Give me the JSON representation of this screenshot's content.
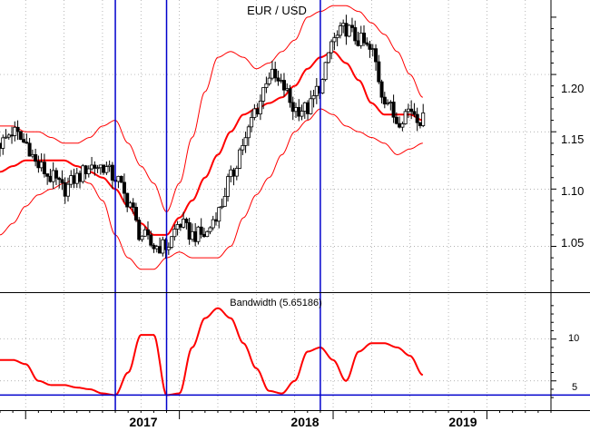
{
  "chart_data": [
    {
      "type": "candlestick",
      "title": "EUR / USD",
      "y_ticks": [
        "1.20",
        "1.15",
        "1.10",
        "1.05"
      ],
      "y_tick_values": [
        1.2,
        1.15,
        1.1,
        1.05
      ],
      "ylim": [
        1.01,
        1.265
      ],
      "x_labels": [
        "2017",
        "2018",
        "2019"
      ],
      "x_label_positions": [
        "2017-01",
        "2018-01",
        "2019-01"
      ],
      "xlim": [
        "2015-11",
        "2019-06"
      ],
      "vertical_markers": [
        "2016-08",
        "2016-12",
        "2017-12"
      ],
      "series": [
        {
          "name": "price_close",
          "color": "#000000",
          "x": [
            "2015-11",
            "2015-12",
            "2016-01",
            "2016-02",
            "2016-03",
            "2016-04",
            "2016-05",
            "2016-06",
            "2016-07",
            "2016-08",
            "2016-09",
            "2016-10",
            "2016-11",
            "2016-12",
            "2017-01",
            "2017-02",
            "2017-03",
            "2017-04",
            "2017-05",
            "2017-06",
            "2017-07",
            "2017-08",
            "2017-09",
            "2017-10",
            "2017-11",
            "2017-12",
            "2018-01",
            "2018-02",
            "2018-03",
            "2018-04",
            "2018-05",
            "2018-06",
            "2018-07",
            "2018-08"
          ],
          "values": [
            1.14,
            1.15,
            1.14,
            1.12,
            1.11,
            1.1,
            1.11,
            1.12,
            1.12,
            1.11,
            1.09,
            1.06,
            1.05,
            1.05,
            1.07,
            1.06,
            1.06,
            1.08,
            1.11,
            1.14,
            1.17,
            1.2,
            1.19,
            1.17,
            1.17,
            1.19,
            1.23,
            1.24,
            1.23,
            1.22,
            1.18,
            1.16,
            1.17,
            1.16
          ]
        },
        {
          "name": "moving_average",
          "color": "#ff0000",
          "x": [
            "2015-11",
            "2015-12",
            "2016-01",
            "2016-02",
            "2016-03",
            "2016-04",
            "2016-05",
            "2016-06",
            "2016-07",
            "2016-08",
            "2016-09",
            "2016-10",
            "2016-11",
            "2016-12",
            "2017-01",
            "2017-02",
            "2017-03",
            "2017-04",
            "2017-05",
            "2017-06",
            "2017-07",
            "2017-08",
            "2017-09",
            "2017-10",
            "2017-11",
            "2017-12",
            "2018-01",
            "2018-02",
            "2018-03",
            "2018-04",
            "2018-05",
            "2018-06",
            "2018-07",
            "2018-08"
          ],
          "values": [
            1.115,
            1.12,
            1.125,
            1.125,
            1.125,
            1.125,
            1.12,
            1.115,
            1.11,
            1.1,
            1.085,
            1.07,
            1.06,
            1.06,
            1.075,
            1.09,
            1.11,
            1.13,
            1.15,
            1.165,
            1.17,
            1.175,
            1.18,
            1.19,
            1.205,
            1.215,
            1.22,
            1.21,
            1.195,
            1.175,
            1.165,
            1.165,
            1.165,
            1.16
          ]
        },
        {
          "name": "upper_band",
          "color": "#ff0000",
          "x": [
            "2015-11",
            "2015-12",
            "2016-01",
            "2016-02",
            "2016-03",
            "2016-04",
            "2016-05",
            "2016-06",
            "2016-07",
            "2016-08",
            "2016-09",
            "2016-10",
            "2016-11",
            "2016-12",
            "2017-01",
            "2017-02",
            "2017-03",
            "2017-04",
            "2017-05",
            "2017-06",
            "2017-07",
            "2017-08",
            "2017-09",
            "2017-10",
            "2017-11",
            "2017-12",
            "2018-01",
            "2018-02",
            "2018-03",
            "2018-04",
            "2018-05",
            "2018-06",
            "2018-07",
            "2018-08"
          ],
          "values": [
            1.155,
            1.155,
            1.15,
            1.15,
            1.145,
            1.14,
            1.14,
            1.145,
            1.155,
            1.16,
            1.14,
            1.12,
            1.105,
            1.08,
            1.105,
            1.145,
            1.185,
            1.215,
            1.22,
            1.215,
            1.205,
            1.21,
            1.22,
            1.23,
            1.25,
            1.255,
            1.26,
            1.26,
            1.255,
            1.245,
            1.235,
            1.22,
            1.2,
            1.18
          ]
        },
        {
          "name": "lower_band",
          "color": "#ff0000",
          "x": [
            "2015-11",
            "2015-12",
            "2016-01",
            "2016-02",
            "2016-03",
            "2016-04",
            "2016-05",
            "2016-06",
            "2016-07",
            "2016-08",
            "2016-09",
            "2016-10",
            "2016-11",
            "2016-12",
            "2017-01",
            "2017-02",
            "2017-03",
            "2017-04",
            "2017-05",
            "2017-06",
            "2017-07",
            "2017-08",
            "2017-09",
            "2017-10",
            "2017-11",
            "2017-12",
            "2018-01",
            "2018-02",
            "2018-03",
            "2018-04",
            "2018-05",
            "2018-06",
            "2018-07",
            "2018-08"
          ],
          "values": [
            1.06,
            1.07,
            1.085,
            1.095,
            1.1,
            1.105,
            1.11,
            1.105,
            1.09,
            1.06,
            1.04,
            1.03,
            1.03,
            1.04,
            1.045,
            1.04,
            1.04,
            1.04,
            1.05,
            1.075,
            1.095,
            1.11,
            1.13,
            1.15,
            1.16,
            1.17,
            1.165,
            1.155,
            1.15,
            1.145,
            1.14,
            1.13,
            1.135,
            1.14
          ]
        }
      ]
    },
    {
      "type": "line",
      "title": "Bandwidth (5.65186)",
      "y_ticks": [
        "10",
        "5"
      ],
      "y_tick_values": [
        10,
        5
      ],
      "ylim": [
        1.5,
        15.5
      ],
      "reference_line": 3.3,
      "xlim": [
        "2015-11",
        "2019-06"
      ],
      "series": [
        {
          "name": "bandwidth",
          "color": "#ff0000",
          "x": [
            "2015-11",
            "2015-12",
            "2016-01",
            "2016-02",
            "2016-03",
            "2016-04",
            "2016-05",
            "2016-06",
            "2016-07",
            "2016-08",
            "2016-09",
            "2016-10",
            "2016-11",
            "2016-12",
            "2017-01",
            "2017-02",
            "2017-03",
            "2017-04",
            "2017-05",
            "2017-06",
            "2017-07",
            "2017-08",
            "2017-09",
            "2017-10",
            "2017-11",
            "2017-12",
            "2018-01",
            "2018-02",
            "2018-03",
            "2018-04",
            "2018-05",
            "2018-06",
            "2018-07",
            "2018-08"
          ],
          "values": [
            7.5,
            7.5,
            7.0,
            5.0,
            4.5,
            4.5,
            4.2,
            4.0,
            3.5,
            3.3,
            6.0,
            10.5,
            10.5,
            3.3,
            3.5,
            9.0,
            12.5,
            13.7,
            12.5,
            9.5,
            6.5,
            3.8,
            3.5,
            5.0,
            8.5,
            9.0,
            7.5,
            5.0,
            8.5,
            9.5,
            9.5,
            9.0,
            8.0,
            5.7
          ]
        }
      ]
    }
  ]
}
